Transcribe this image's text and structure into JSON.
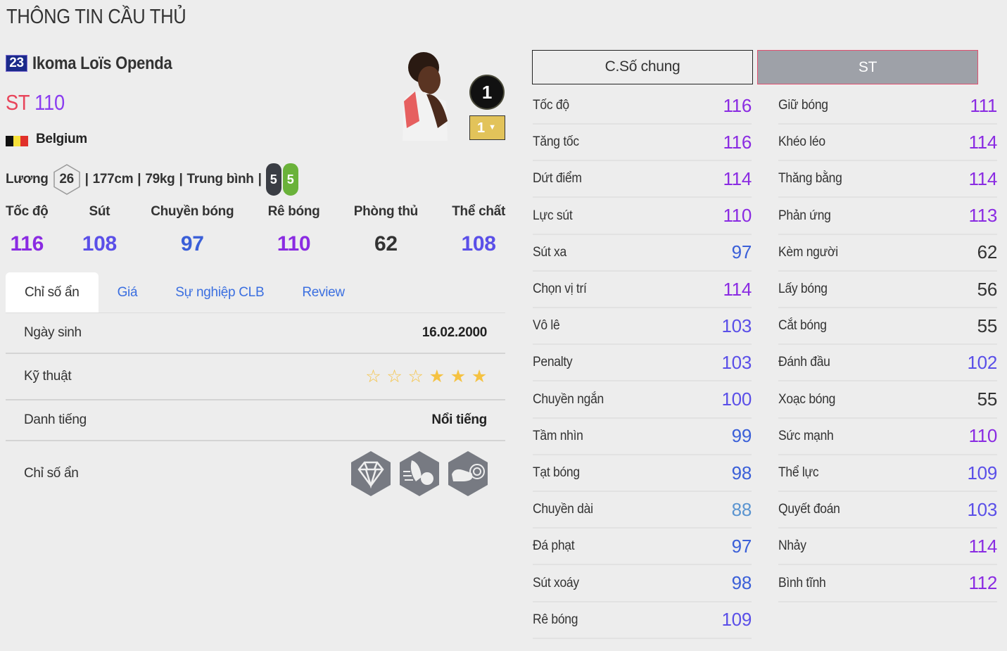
{
  "page_title": "THÔNG TIN CẦU THỦ",
  "player": {
    "season_number": "23",
    "name": "Ikoma Loïs Openda",
    "position": "ST",
    "overall": "110",
    "nation": "Belgium",
    "salary_label": "Lương",
    "salary": "26",
    "height": "177cm",
    "weight": "79kg",
    "work_rate": "Trung bình",
    "weak_foot_left": "5",
    "weak_foot_right": "5",
    "upgrade_badge": "1",
    "level_select": "1"
  },
  "summary": [
    {
      "label": "Tốc độ",
      "value": "116"
    },
    {
      "label": "Sút",
      "value": "108"
    },
    {
      "label": "Chuyền bóng",
      "value": "97"
    },
    {
      "label": "Rê bóng",
      "value": "110"
    },
    {
      "label": "Phòng thủ",
      "value": "62"
    },
    {
      "label": "Thể chất",
      "value": "108"
    }
  ],
  "tabs": [
    "Chỉ số ẩn",
    "Giá",
    "Sự nghiệp CLB",
    "Review"
  ],
  "details": {
    "birth_label": "Ngày sinh",
    "birth": "16.02.2000",
    "skill_label": "Kỹ thuật",
    "skill_stars": 3,
    "skill_max": 6,
    "fame_label": "Danh tiếng",
    "fame": "Nổi tiếng",
    "hidden_label": "Chỉ số ẩn",
    "hidden_traits": [
      "diamond-icon",
      "speed-dribbler-icon",
      "finesse-boot-icon"
    ]
  },
  "stat_buttons": {
    "general": "C.Số chung",
    "position": "ST"
  },
  "colors": {
    "tier_110": "#8a2be2",
    "tier_100": "#5a4fe8",
    "tier_90": "#3a5fd8",
    "tier_80": "#5a94d0",
    "tier_low": "#333333",
    "accent_pos": "#e8445a",
    "tab_link": "#3b6fe0",
    "star": "#f5c242"
  },
  "stats_left": [
    [
      "Tốc độ",
      "116"
    ],
    [
      "Tăng tốc",
      "116"
    ],
    [
      "Dứt điểm",
      "114"
    ],
    [
      "Lực sút",
      "110"
    ],
    [
      "Sút xa",
      "97"
    ],
    [
      "Chọn vị trí",
      "114"
    ],
    [
      "Vô lê",
      "103"
    ],
    [
      "Penalty",
      "103"
    ],
    [
      "Chuyền ngắn",
      "100"
    ],
    [
      "Tầm nhìn",
      "99"
    ],
    [
      "Tạt bóng",
      "98"
    ],
    [
      "Chuyền dài",
      "88"
    ],
    [
      "Đá phạt",
      "97"
    ],
    [
      "Sút xoáy",
      "98"
    ],
    [
      "Rê bóng",
      "109"
    ]
  ],
  "stats_right": [
    [
      "Giữ bóng",
      "111"
    ],
    [
      "Khéo léo",
      "114"
    ],
    [
      "Thăng bằng",
      "114"
    ],
    [
      "Phản ứng",
      "113"
    ],
    [
      "Kèm người",
      "62"
    ],
    [
      "Lấy bóng",
      "56"
    ],
    [
      "Cắt bóng",
      "55"
    ],
    [
      "Đánh đầu",
      "102"
    ],
    [
      "Xoạc bóng",
      "55"
    ],
    [
      "Sức mạnh",
      "110"
    ],
    [
      "Thể lực",
      "109"
    ],
    [
      "Quyết đoán",
      "103"
    ],
    [
      "Nhảy",
      "114"
    ],
    [
      "Bình tĩnh",
      "112"
    ]
  ]
}
